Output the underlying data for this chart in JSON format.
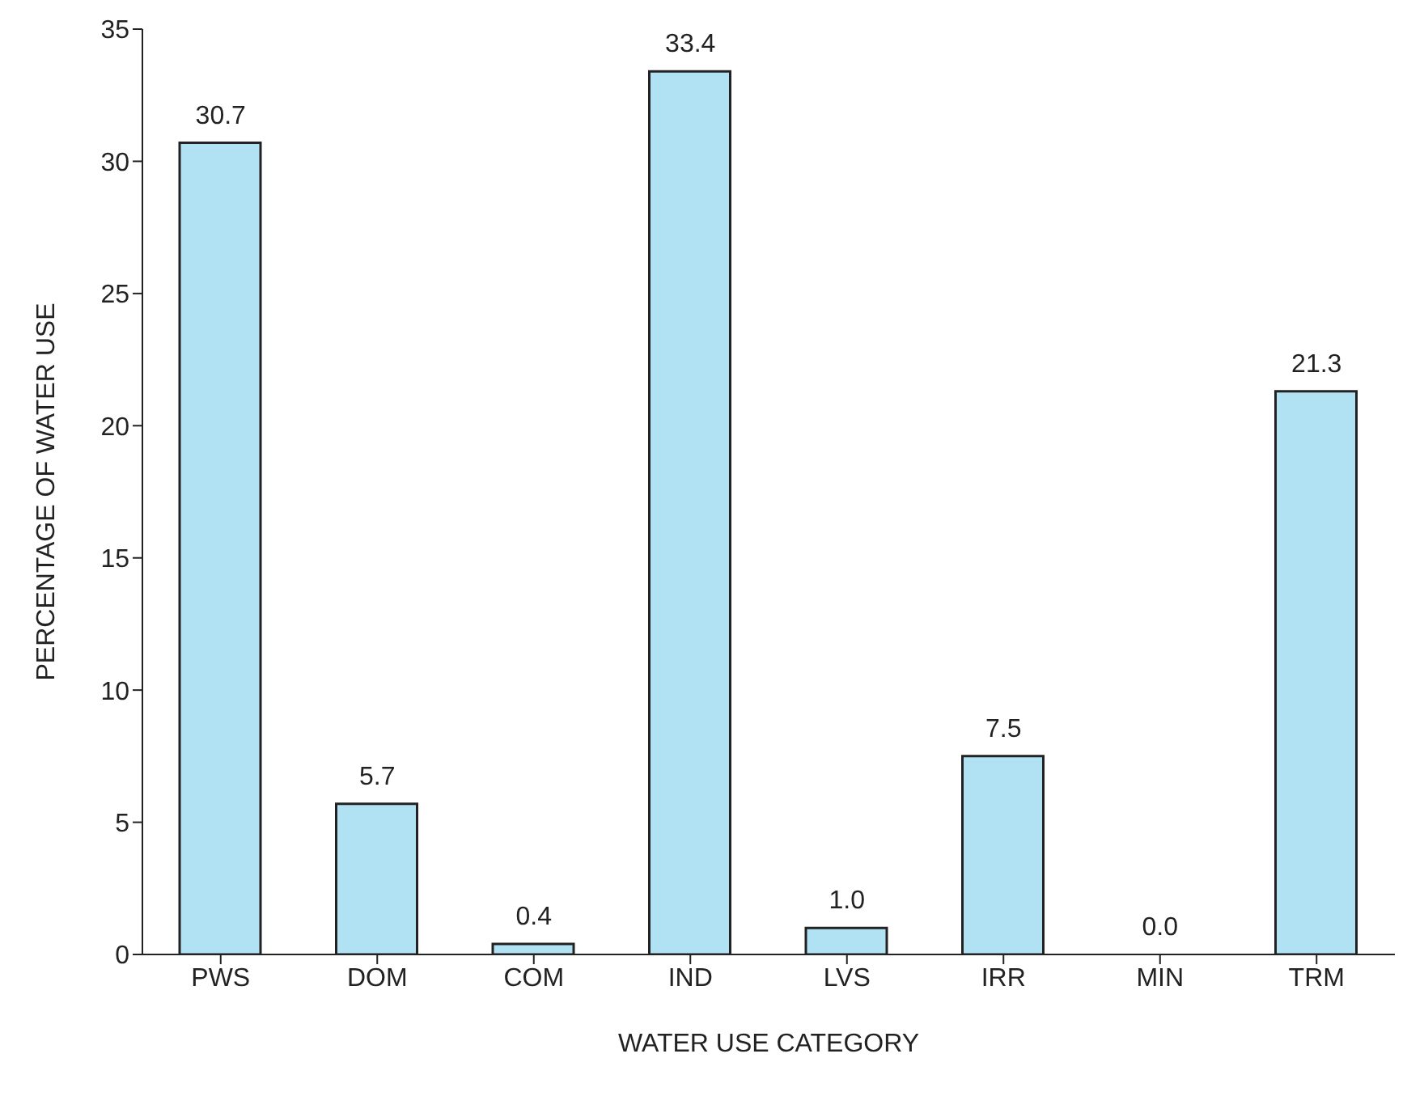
{
  "chart_data": {
    "type": "bar",
    "xlabel": "WATER USE CATEGORY",
    "ylabel": "PERCENTAGE OF WATER USE",
    "categories": [
      "PWS",
      "DOM",
      "COM",
      "IND",
      "LVS",
      "IRR",
      "MIN",
      "TRM"
    ],
    "values": [
      30.7,
      5.7,
      0.4,
      33.4,
      1.0,
      7.5,
      0.0,
      21.3
    ],
    "value_labels": [
      "30.7",
      "5.7",
      "0.4",
      "33.4",
      "1.0",
      "7.5",
      "0.0",
      "21.3"
    ],
    "color": "#b0e2f4",
    "ylim": [
      0,
      35
    ],
    "yticks": [
      0,
      5,
      10,
      15,
      20,
      25,
      30,
      35
    ],
    "grid": false,
    "legend": false
  }
}
